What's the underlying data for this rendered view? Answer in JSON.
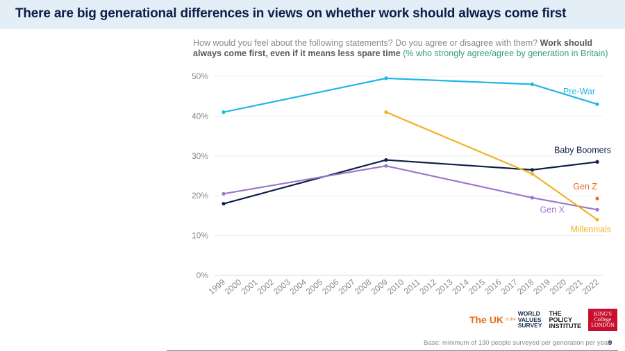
{
  "header": {
    "title": "There are big generational differences in views on whether work should always come first"
  },
  "subtitle": {
    "prefix": "How would you feel about the following statements? Do you agree or disagree with them? ",
    "statement": "Work should always come first, even if it means less spare time",
    "measure": "(% who strongly agree/agree by generation in Britain)"
  },
  "chart_data": {
    "type": "line",
    "title": "Work should always come first, even if it means less spare time",
    "xlabel": "",
    "ylabel": "",
    "x_categories": [
      "1999",
      "2000",
      "2001",
      "2002",
      "2003",
      "2004",
      "2005",
      "2006",
      "2007",
      "2008",
      "2009",
      "2010",
      "2011",
      "2012",
      "2013",
      "2014",
      "2015",
      "2016",
      "2017",
      "2018",
      "2019",
      "2020",
      "2021",
      "2022"
    ],
    "ylim": [
      0,
      50
    ],
    "yticks": [
      0,
      10,
      20,
      30,
      40,
      50
    ],
    "ytick_labels": [
      "0%",
      "10%",
      "20%",
      "30%",
      "40%",
      "50%"
    ],
    "grid": true,
    "legend": "inline labels at line ends",
    "series": [
      {
        "name": "Pre-War",
        "color": "#21b6e6",
        "points": [
          [
            1999,
            41
          ],
          [
            2009,
            49.5
          ],
          [
            2018,
            48
          ],
          [
            2022,
            43
          ]
        ]
      },
      {
        "name": "Baby Boomers",
        "color": "#0f1d4a",
        "points": [
          [
            1999,
            18
          ],
          [
            2009,
            29
          ],
          [
            2018,
            26.5
          ],
          [
            2022,
            28.5
          ]
        ]
      },
      {
        "name": "Gen Z",
        "color": "#e86a1a",
        "points": [
          [
            2022,
            19.3
          ]
        ]
      },
      {
        "name": "Gen X",
        "color": "#9b78cc",
        "points": [
          [
            1999,
            20.5
          ],
          [
            2009,
            27.5
          ],
          [
            2018,
            19.5
          ],
          [
            2022,
            16.5
          ]
        ]
      },
      {
        "name": "Millennials",
        "color": "#f0b323",
        "points": [
          [
            2009,
            41
          ],
          [
            2018,
            25.5
          ],
          [
            2022,
            14
          ]
        ]
      }
    ]
  },
  "logos": {
    "uk_big": "The UK",
    "uk_small": "in the",
    "wvs": [
      "WORLD",
      "VALUES",
      "SURVEY"
    ],
    "policy_institute": [
      "THE",
      "POLICY",
      "INSTITUTE"
    ],
    "kcl": [
      "KING'S",
      "College",
      "LONDON"
    ]
  },
  "footer": {
    "base_note": "Base: minimum of 130 people surveyed per generation per year",
    "page_number": "9"
  }
}
